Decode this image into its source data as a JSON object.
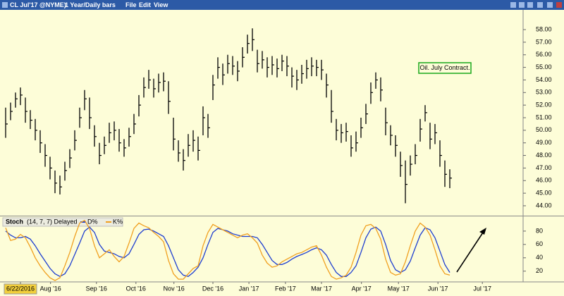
{
  "toolbar": {
    "symbol": "CL Jul'17 @NYME)",
    "period": "1 Year/Daily bars",
    "menu": [
      "File",
      "Edit",
      "View"
    ]
  },
  "chart_data": [
    {
      "type": "ohlc",
      "annotation": "Oil. July Contract.",
      "color": "#000000",
      "xlim": [
        -0.5,
        104.5
      ],
      "ylim": [
        43.27,
        59.57
      ],
      "yticks": [
        {
          "value": 44,
          "label": "44.00"
        },
        {
          "value": 45,
          "label": "45.00"
        },
        {
          "value": 46,
          "label": "46.00"
        },
        {
          "value": 47,
          "label": "47.00"
        },
        {
          "value": 48,
          "label": "48.00"
        },
        {
          "value": 49,
          "label": "49.00"
        },
        {
          "value": 50,
          "label": "50.00"
        },
        {
          "value": 51,
          "label": "51.00"
        },
        {
          "value": 52,
          "label": "52.00"
        },
        {
          "value": 53,
          "label": "53.00"
        },
        {
          "value": 54,
          "label": "54.00"
        },
        {
          "value": 55,
          "label": "55.00"
        },
        {
          "value": 56,
          "label": "56.00"
        },
        {
          "value": 57,
          "label": "57.00"
        },
        {
          "value": 58,
          "label": "58.00"
        }
      ],
      "high": [
        51.8,
        52.2,
        53.0,
        53.4,
        52.6,
        51.6,
        50.9,
        50.0,
        48.9,
        47.9,
        46.8,
        46.4,
        47.5,
        48.5,
        50.0,
        51.8,
        53.2,
        52.6,
        50.4,
        49.0,
        49.5,
        50.6,
        50.7,
        50.1,
        49.3,
        50.2,
        51.3,
        52.8,
        54.2,
        54.8,
        54.1,
        54.5,
        54.6,
        53.9,
        51.0,
        49.2,
        48.5,
        49.7,
        50.0,
        49.5,
        51.9,
        51.3,
        54.4,
        55.8,
        55.3,
        56.0,
        55.9,
        55.5,
        56.6,
        57.6,
        58.1,
        56.4,
        56.3,
        55.8,
        55.9,
        55.7,
        56.0,
        55.9,
        55.0,
        54.8,
        55.2,
        55.6,
        55.8,
        55.6,
        55.6,
        54.5,
        53.2,
        50.9,
        50.5,
        50.6,
        49.6,
        49.9,
        51.0,
        52.1,
        53.8,
        54.6,
        54.2,
        51.8,
        50.4,
        49.6,
        48.3,
        47.6,
        48.0,
        48.9,
        50.9,
        52.0,
        50.6,
        50.5,
        49.2,
        47.6,
        46.9
      ],
      "low": [
        49.4,
        50.8,
        51.8,
        52.0,
        50.6,
        50.1,
        49.2,
        48.2,
        47.1,
        46.1,
        45.0,
        44.9,
        46.0,
        47.0,
        48.4,
        50.2,
        51.6,
        50.1,
        48.7,
        47.3,
        48.1,
        49.0,
        49.2,
        48.3,
        47.9,
        48.7,
        49.7,
        51.1,
        52.6,
        53.3,
        52.6,
        53.0,
        53.1,
        51.3,
        48.4,
        47.5,
        46.8,
        47.9,
        48.3,
        47.6,
        49.6,
        49.4,
        52.4,
        54.1,
        53.6,
        54.5,
        54.4,
        53.9,
        55.0,
        56.1,
        56.3,
        54.6,
        54.9,
        54.2,
        54.4,
        54.2,
        54.7,
        54.3,
        53.4,
        53.2,
        53.7,
        54.1,
        54.3,
        54.3,
        54.0,
        52.6,
        50.6,
        49.2,
        49.0,
        49.1,
        47.9,
        48.3,
        49.4,
        50.5,
        52.1,
        53.3,
        52.3,
        49.6,
        48.8,
        47.9,
        46.3,
        44.2,
        46.4,
        47.3,
        49.1,
        50.7,
        48.5,
        48.9,
        47.1,
        45.5,
        45.4
      ],
      "close": [
        50.5,
        51.5,
        52.5,
        52.8,
        51.5,
        50.8,
        50,
        49,
        48,
        47,
        45.8,
        45.5,
        46.8,
        47.8,
        49.2,
        51,
        52.5,
        51,
        49.5,
        48,
        48.8,
        49.8,
        50,
        49,
        48.6,
        49.5,
        50.5,
        52,
        53.4,
        54,
        53.3,
        53.8,
        53.9,
        52.3,
        49.3,
        48.2,
        47.6,
        48.8,
        49.2,
        48.4,
        51,
        50.2,
        53.6,
        55,
        54.4,
        55.3,
        55.1,
        54.7,
        55.8,
        56.9,
        57.2,
        55.3,
        55.6,
        55,
        55.2,
        54.9,
        55.5,
        55.1,
        54.3,
        54,
        54.5,
        54.9,
        55.1,
        55,
        54.8,
        53.6,
        51.5,
        50,
        49.8,
        49.9,
        48.6,
        49,
        50.2,
        51.3,
        53,
        54,
        53.2,
        50.6,
        49.6,
        48.8,
        47.2,
        45.7,
        47.3,
        48,
        50.1,
        51.4,
        49.3,
        49.8,
        48,
        46.5,
        46.2
      ]
    },
    {
      "type": "line",
      "title": "Stoch",
      "subtitle": "(14, 7, 7) Delayed",
      "xlim": [
        -0.5,
        104.5
      ],
      "ylim": [
        6,
        101
      ],
      "yticks": [
        20,
        40,
        60,
        80
      ],
      "xticks": [
        {
          "value": 3,
          "label": "6/22/2016"
        },
        {
          "value": 9.1,
          "label": "Aug '16"
        },
        {
          "value": 18.4,
          "label": "Sep '16"
        },
        {
          "value": 26.4,
          "label": "Oct '16"
        },
        {
          "value": 34.1,
          "label": "Nov '16"
        },
        {
          "value": 42,
          "label": "Dec '16"
        },
        {
          "value": 49.3,
          "label": "Jan '17"
        },
        {
          "value": 56.7,
          "label": "Feb '17"
        },
        {
          "value": 64,
          "label": "Mar '17"
        },
        {
          "value": 72.1,
          "label": "Apr '17"
        },
        {
          "value": 79.6,
          "label": "May '17"
        },
        {
          "value": 87.6,
          "label": "Jun '17"
        },
        {
          "value": 96.6,
          "label": "Jul '17"
        }
      ],
      "series": [
        {
          "name": "D%",
          "color": "#1f3fd0",
          "values": [
            80,
            74,
            70,
            70,
            72,
            68,
            58,
            46,
            35,
            24,
            16,
            12,
            16,
            28,
            45,
            62,
            80,
            86,
            78,
            60,
            50,
            48,
            46,
            42,
            40,
            46,
            60,
            75,
            82,
            83,
            80,
            76,
            72,
            58,
            40,
            22,
            14,
            12,
            18,
            26,
            40,
            60,
            78,
            84,
            82,
            80,
            76,
            74,
            72,
            72,
            72,
            70,
            60,
            48,
            36,
            30,
            30,
            33,
            38,
            42,
            45,
            48,
            52,
            55,
            52,
            44,
            30,
            18,
            12,
            12,
            18,
            28,
            48,
            70,
            83,
            86,
            80,
            60,
            36,
            22,
            18,
            22,
            35,
            55,
            74,
            85,
            82,
            70,
            50,
            30,
            18
          ]
        },
        {
          "name": "K%",
          "color": "#f0a020",
          "values": [
            85,
            66,
            68,
            75,
            70,
            56,
            40,
            28,
            18,
            10,
            6,
            10,
            28,
            48,
            72,
            92,
            96,
            84,
            58,
            40,
            46,
            52,
            42,
            34,
            42,
            62,
            84,
            92,
            88,
            85,
            78,
            72,
            64,
            36,
            16,
            8,
            8,
            16,
            24,
            28,
            58,
            78,
            90,
            86,
            82,
            78,
            74,
            70,
            74,
            76,
            70,
            62,
            44,
            32,
            26,
            28,
            34,
            38,
            42,
            46,
            48,
            52,
            56,
            58,
            44,
            26,
            12,
            8,
            10,
            14,
            26,
            48,
            74,
            88,
            90,
            84,
            68,
            38,
            18,
            14,
            16,
            34,
            58,
            80,
            92,
            86,
            74,
            52,
            28,
            16,
            14
          ]
        }
      ]
    }
  ]
}
